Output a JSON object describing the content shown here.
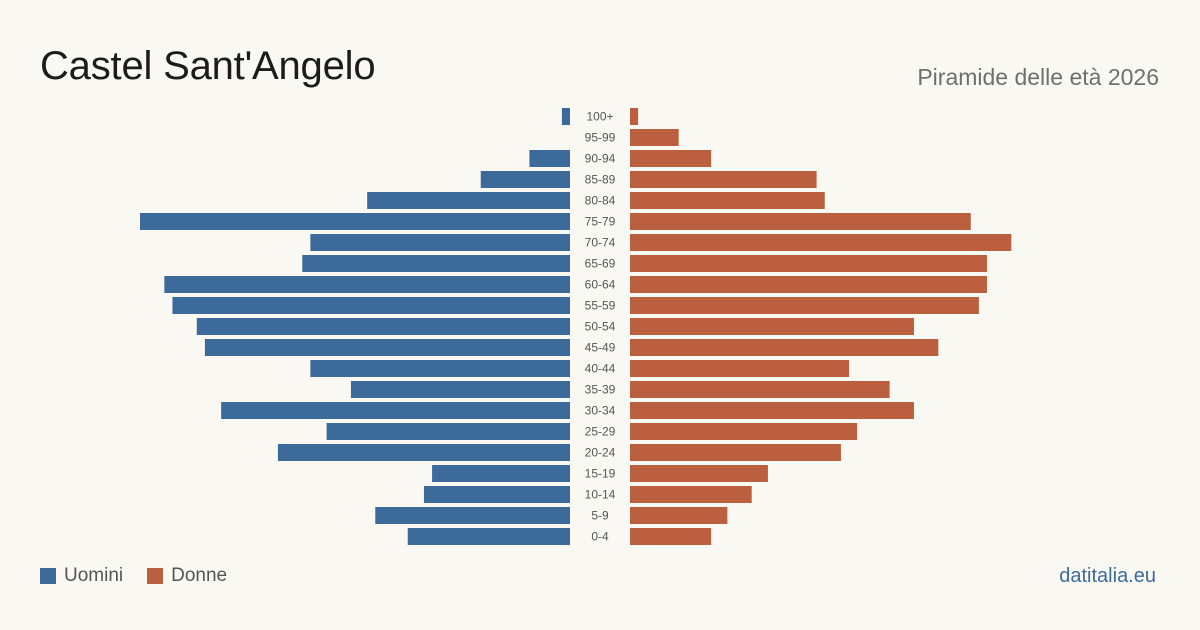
{
  "header": {
    "title": "Castel Sant'Angelo",
    "subtitle": "Piramide delle età 2026"
  },
  "legend": {
    "male_label": "Uomini",
    "female_label": "Donne"
  },
  "footer": {
    "brand": "datitalia.eu"
  },
  "colors": {
    "male": "#3b6a9b",
    "female": "#bb5f3e"
  },
  "chart_data": {
    "type": "bar",
    "orientation": "horizontal",
    "categories": [
      "100+",
      "95-99",
      "90-94",
      "85-89",
      "80-84",
      "75-79",
      "70-74",
      "65-69",
      "60-64",
      "55-59",
      "50-54",
      "45-49",
      "40-44",
      "35-39",
      "30-34",
      "25-29",
      "20-24",
      "15-19",
      "10-14",
      "5-9",
      "0-4"
    ],
    "series": [
      {
        "name": "Uomini",
        "values": [
          1,
          0,
          5,
          11,
          25,
          53,
          32,
          33,
          50,
          49,
          46,
          45,
          32,
          27,
          43,
          30,
          36,
          17,
          18,
          24,
          20
        ]
      },
      {
        "name": "Donne",
        "values": [
          1,
          6,
          10,
          23,
          24,
          42,
          47,
          44,
          44,
          43,
          35,
          38,
          27,
          32,
          35,
          28,
          26,
          17,
          15,
          12,
          10
        ]
      }
    ],
    "xlim": [
      0,
      53
    ],
    "legend_position": "bottom-left",
    "grid": false,
    "axis_labels_shown": false
  }
}
